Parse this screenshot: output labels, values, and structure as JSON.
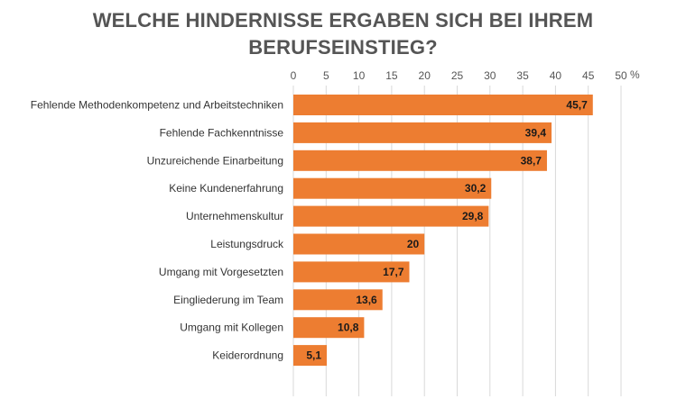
{
  "chart_data": {
    "type": "bar",
    "orientation": "horizontal",
    "title_lines": [
      "WELCHE HINDERNISSE ERGABEN SICH BEI IHREM",
      "BERUFSEINSTIEG?"
    ],
    "categories": [
      "Fehlende Methodenkompetenz und Arbeitstechniken",
      "Fehlende Fachkenntnisse",
      "Unzureichende Einarbeitung",
      "Keine Kundenerfahrung",
      "Unternehmenskultur",
      "Leistungsdruck",
      "Umgang mit Vorgesetzten",
      "Eingliederung im Team",
      "Umgang mit Kollegen",
      "Keiderordnung"
    ],
    "values": [
      45.7,
      39.4,
      38.7,
      30.2,
      29.8,
      20,
      17.7,
      13.6,
      10.8,
      5.1
    ],
    "value_labels": [
      "45,7",
      "39,4",
      "38,7",
      "30,2",
      "29,8",
      "20",
      "17,7",
      "13,6",
      "10,8",
      "5,1"
    ],
    "xlim": [
      0,
      50
    ],
    "xticks": [
      0,
      5,
      10,
      15,
      20,
      25,
      30,
      35,
      40,
      45,
      50
    ],
    "axis_unit": "%",
    "axis_position": "top",
    "grid": true,
    "bar_color": "#ED7D31"
  }
}
